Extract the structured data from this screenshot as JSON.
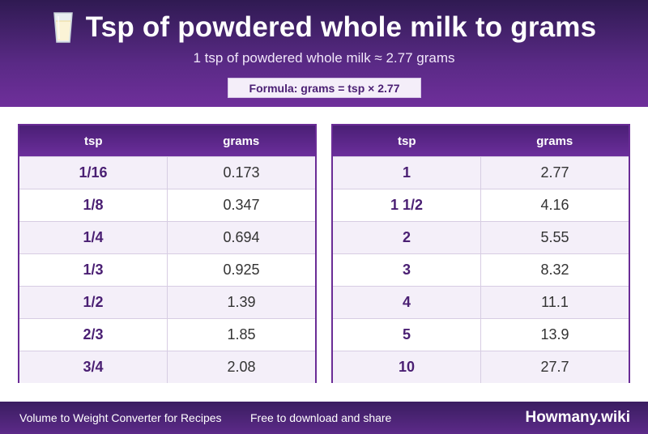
{
  "header": {
    "title": "Tsp of powdered whole milk to grams",
    "subtitle": "1 tsp of powdered whole milk ≈ 2.77 grams",
    "formula": "Formula: grams = tsp × 2.77",
    "icon": "milk-glass-icon"
  },
  "tables": {
    "col_unit": "tsp",
    "col_value": "grams",
    "left": [
      {
        "tsp": "1/16",
        "grams": "0.173"
      },
      {
        "tsp": "1/8",
        "grams": "0.347"
      },
      {
        "tsp": "1/4",
        "grams": "0.694"
      },
      {
        "tsp": "1/3",
        "grams": "0.925"
      },
      {
        "tsp": "1/2",
        "grams": "1.39"
      },
      {
        "tsp": "2/3",
        "grams": "1.85"
      },
      {
        "tsp": "3/4",
        "grams": "2.08"
      }
    ],
    "right": [
      {
        "tsp": "1",
        "grams": "2.77"
      },
      {
        "tsp": "1 1/2",
        "grams": "4.16"
      },
      {
        "tsp": "2",
        "grams": "5.55"
      },
      {
        "tsp": "3",
        "grams": "8.32"
      },
      {
        "tsp": "4",
        "grams": "11.1"
      },
      {
        "tsp": "5",
        "grams": "13.9"
      },
      {
        "tsp": "10",
        "grams": "27.7"
      }
    ]
  },
  "footer": {
    "left_text": "Volume to Weight Converter for Recipes",
    "middle_text": "Free to download and share",
    "brand": "Howmany.wiki"
  }
}
